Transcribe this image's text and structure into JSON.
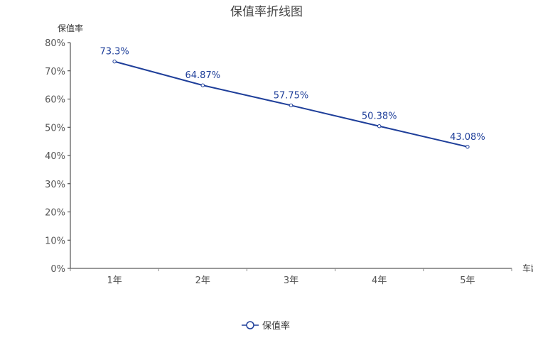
{
  "chart_data": {
    "type": "line",
    "title": "保值率折线图",
    "xlabel": "车龄",
    "ylabel": "保值率",
    "categories": [
      "1年",
      "2年",
      "3年",
      "4年",
      "5年"
    ],
    "series": [
      {
        "name": "保值率",
        "values": [
          73.3,
          64.87,
          57.75,
          50.38,
          43.08
        ],
        "labels": [
          "73.3%",
          "64.87%",
          "57.75%",
          "50.38%",
          "43.08%"
        ]
      }
    ],
    "ylim": [
      0,
      80
    ],
    "yticks": [
      "0%",
      "10%",
      "20%",
      "30%",
      "40%",
      "50%",
      "60%",
      "70%",
      "80%"
    ],
    "grid": false,
    "legend": "bottom-center",
    "color": "#1f3f9a"
  }
}
